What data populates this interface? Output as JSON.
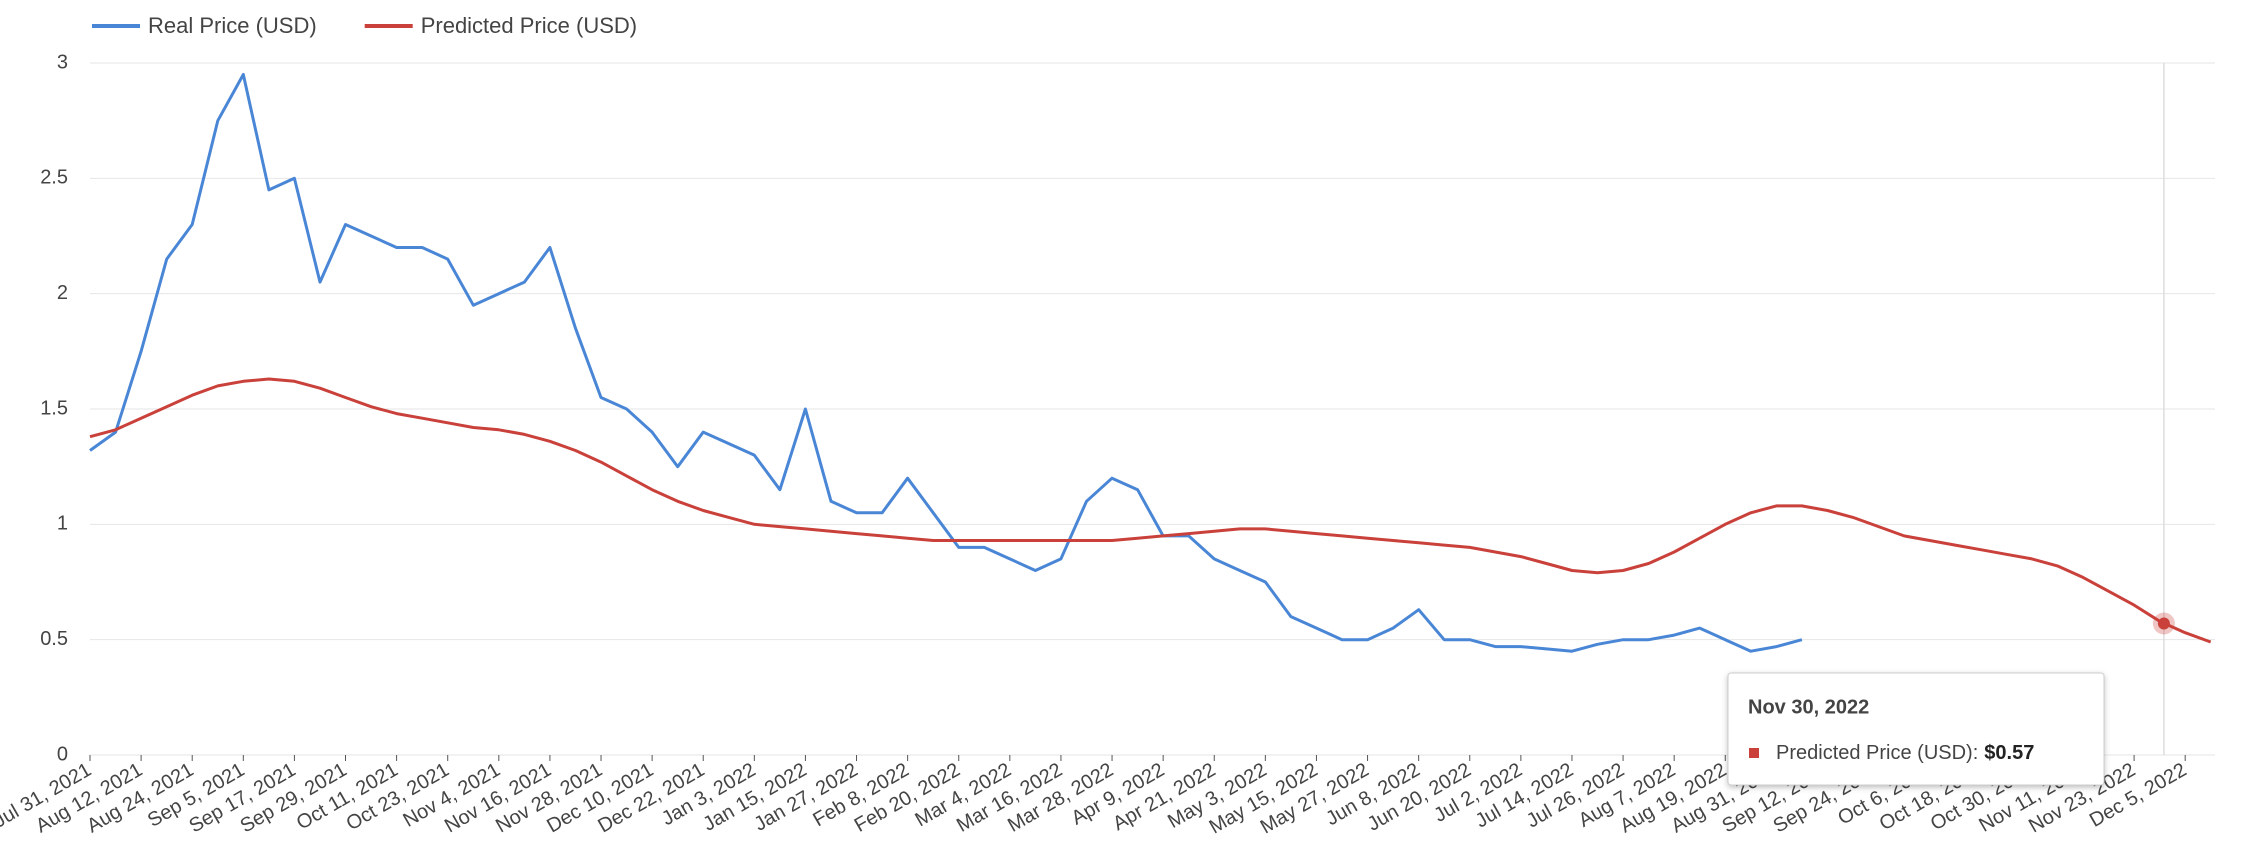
{
  "chart_data": {
    "type": "line",
    "x": [
      "Jul 31, 2021",
      "Aug 6, 2021",
      "Aug 12, 2021",
      "Aug 18, 2021",
      "Aug 24, 2021",
      "Aug 30, 2021",
      "Sep 5, 2021",
      "Sep 11, 2021",
      "Sep 17, 2021",
      "Sep 23, 2021",
      "Sep 29, 2021",
      "Oct 5, 2021",
      "Oct 11, 2021",
      "Oct 17, 2021",
      "Oct 23, 2021",
      "Oct 29, 2021",
      "Nov 4, 2021",
      "Nov 10, 2021",
      "Nov 16, 2021",
      "Nov 22, 2021",
      "Nov 28, 2021",
      "Dec 4, 2021",
      "Dec 10, 2021",
      "Dec 16, 2021",
      "Dec 22, 2021",
      "Dec 28, 2021",
      "Jan 3, 2022",
      "Jan 9, 2022",
      "Jan 15, 2022",
      "Jan 21, 2022",
      "Jan 27, 2022",
      "Feb 2, 2022",
      "Feb 8, 2022",
      "Feb 14, 2022",
      "Feb 20, 2022",
      "Feb 26, 2022",
      "Mar 4, 2022",
      "Mar 10, 2022",
      "Mar 16, 2022",
      "Mar 22, 2022",
      "Mar 28, 2022",
      "Apr 3, 2022",
      "Apr 9, 2022",
      "Apr 15, 2022",
      "Apr 21, 2022",
      "Apr 27, 2022",
      "May 3, 2022",
      "May 9, 2022",
      "May 15, 2022",
      "May 21, 2022",
      "May 27, 2022",
      "Jun 2, 2022",
      "Jun 8, 2022",
      "Jun 14, 2022",
      "Jun 20, 2022",
      "Jun 26, 2022",
      "Jul 2, 2022",
      "Jul 8, 2022",
      "Jul 14, 2022",
      "Jul 20, 2022",
      "Jul 26, 2022",
      "Aug 1, 2022",
      "Aug 7, 2022",
      "Aug 13, 2022",
      "Aug 19, 2022",
      "Aug 25, 2022",
      "Aug 31, 2022",
      "Sep 6, 2022",
      "Sep 12, 2022",
      "Sep 18, 2022",
      "Sep 24, 2022",
      "Sep 30, 2022",
      "Oct 6, 2022",
      "Oct 12, 2022",
      "Oct 18, 2022",
      "Oct 24, 2022",
      "Oct 30, 2022",
      "Nov 5, 2022",
      "Nov 11, 2022",
      "Nov 17, 2022",
      "Nov 23, 2022",
      "Nov 29, 2022",
      "Dec 5, 2022",
      "Dec 11, 2022"
    ],
    "series": [
      {
        "name": "Real Price (USD)",
        "color": "#4a86d6",
        "values": [
          1.32,
          1.4,
          1.75,
          2.15,
          2.3,
          2.75,
          2.95,
          2.45,
          2.5,
          2.05,
          2.3,
          2.25,
          2.2,
          2.2,
          2.15,
          1.95,
          2.0,
          2.05,
          2.2,
          1.85,
          1.55,
          1.5,
          1.4,
          1.25,
          1.4,
          1.35,
          1.3,
          1.15,
          1.5,
          1.1,
          1.05,
          1.05,
          1.2,
          1.05,
          0.9,
          0.9,
          0.85,
          0.8,
          0.85,
          1.1,
          1.2,
          1.15,
          0.95,
          0.95,
          0.85,
          0.8,
          0.75,
          0.6,
          0.55,
          0.5,
          0.5,
          0.55,
          0.63,
          0.5,
          0.5,
          0.47,
          0.47,
          0.46,
          0.45,
          0.48,
          0.5,
          0.5,
          0.52,
          0.55,
          0.5,
          0.45,
          0.47,
          0.5,
          null,
          null,
          null,
          null,
          null,
          null,
          null,
          null,
          null,
          null,
          null,
          null,
          null,
          null,
          null,
          null
        ]
      },
      {
        "name": "Predicted Price (USD)",
        "color": "#c9413a",
        "values": [
          1.38,
          1.41,
          1.46,
          1.51,
          1.56,
          1.6,
          1.62,
          1.63,
          1.62,
          1.59,
          1.55,
          1.51,
          1.48,
          1.46,
          1.44,
          1.42,
          1.41,
          1.39,
          1.36,
          1.32,
          1.27,
          1.21,
          1.15,
          1.1,
          1.06,
          1.03,
          1.0,
          0.99,
          0.98,
          0.97,
          0.96,
          0.95,
          0.94,
          0.93,
          0.93,
          0.93,
          0.93,
          0.93,
          0.93,
          0.93,
          0.93,
          0.94,
          0.95,
          0.96,
          0.97,
          0.98,
          0.98,
          0.97,
          0.96,
          0.95,
          0.94,
          0.93,
          0.92,
          0.91,
          0.9,
          0.88,
          0.86,
          0.83,
          0.8,
          0.79,
          0.8,
          0.83,
          0.88,
          0.94,
          1.0,
          1.05,
          1.08,
          1.08,
          1.06,
          1.03,
          0.99,
          0.95,
          0.93,
          0.91,
          0.89,
          0.87,
          0.85,
          0.82,
          0.77,
          0.71,
          0.65,
          0.58,
          0.53,
          0.49
        ]
      }
    ],
    "xlim": [
      "Jul 31, 2021",
      "Dec 12, 2022"
    ],
    "xticks": [
      "Jul 31, 2021",
      "Aug 12, 2021",
      "Aug 24, 2021",
      "Sep 5, 2021",
      "Sep 17, 2021",
      "Sep 29, 2021",
      "Oct 11, 2021",
      "Oct 23, 2021",
      "Nov 4, 2021",
      "Nov 16, 2021",
      "Nov 28, 2021",
      "Dec 10, 2021",
      "Dec 22, 2021",
      "Jan 3, 2022",
      "Jan 15, 2022",
      "Jan 27, 2022",
      "Feb 8, 2022",
      "Feb 20, 2022",
      "Mar 4, 2022",
      "Mar 16, 2022",
      "Mar 28, 2022",
      "Apr 9, 2022",
      "Apr 21, 2022",
      "May 3, 2022",
      "May 15, 2022",
      "May 27, 2022",
      "Jun 8, 2022",
      "Jun 20, 2022",
      "Jul 2, 2022",
      "Jul 14, 2022",
      "Jul 26, 2022",
      "Aug 7, 2022",
      "Aug 19, 2022",
      "Aug 31, 2022",
      "Sep 12, 2022",
      "Sep 24, 2022",
      "Oct 6, 2022",
      "Oct 18, 2022",
      "Oct 30, 2022",
      "Nov 11, 2022",
      "Nov 23, 2022",
      "Dec 5, 2022"
    ],
    "ylim": [
      0,
      3
    ],
    "yticks": [
      0,
      0.5,
      1,
      1.5,
      2,
      2.5,
      3
    ],
    "grid": true,
    "legend": "top-left",
    "tooltip": {
      "x": "Nov 30, 2022",
      "label": "Predicted Price (USD):",
      "value": 0.57,
      "value_label": "$0.57"
    }
  }
}
